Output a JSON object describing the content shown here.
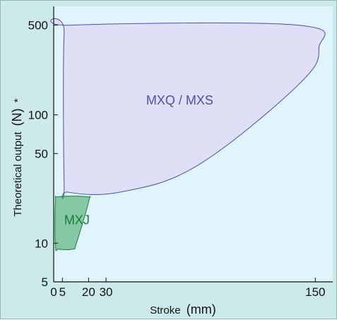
{
  "chart_data": {
    "type": "area",
    "x_scale": "linear",
    "y_scale": "log",
    "xlabel": "Stroke",
    "xlabel_unit": "(mm)",
    "ylabel": "Theoretical output",
    "ylabel_unit": "(N)",
    "ylabel_suffix": "*",
    "xlim": [
      0,
      160
    ],
    "ylim": [
      5,
      700
    ],
    "x_ticks": [
      {
        "value": 0,
        "label": "0"
      },
      {
        "value": 5,
        "label": "5"
      },
      {
        "value": 20,
        "label": "20"
      },
      {
        "value": 30,
        "label": "30"
      },
      {
        "value": 150,
        "label": "150"
      }
    ],
    "y_ticks": [
      {
        "value": 5,
        "label": "5"
      },
      {
        "value": 10,
        "label": "10"
      },
      {
        "value": 50,
        "label": "50"
      },
      {
        "value": 100,
        "label": "100"
      },
      {
        "value": 500,
        "label": "500"
      }
    ],
    "series": [
      {
        "name": "MXQ / MXS",
        "label_at": {
          "x": 53,
          "y": 120
        },
        "fill": "#dfe0f5",
        "stroke": "#4b4fb0",
        "text_color": "#4b4fb0",
        "outline": [
          {
            "x": 6,
            "y": 430
          },
          {
            "x": 10,
            "y": 500
          },
          {
            "x": 140,
            "y": 500
          },
          {
            "x": 152,
            "y": 330
          },
          {
            "x": 140,
            "y": 170
          },
          {
            "x": 82,
            "y": 40
          },
          {
            "x": 38,
            "y": 25
          },
          {
            "x": 8,
            "y": 25
          },
          {
            "x": 6,
            "y": 29
          }
        ]
      },
      {
        "name": "MXJ",
        "label_at": {
          "x": 6,
          "y": 14
        },
        "fill": "#3aa55d",
        "fill_opacity": 0.55,
        "stroke": "#1b7a3a",
        "text_color": "#1b7a3a",
        "outline": [
          {
            "x": 1,
            "y": 9.5
          },
          {
            "x": 1,
            "y": 21
          },
          {
            "x": 3,
            "y": 23
          },
          {
            "x": 19,
            "y": 23
          },
          {
            "x": 20,
            "y": 21
          },
          {
            "x": 13,
            "y": 10
          },
          {
            "x": 11,
            "y": 9
          },
          {
            "x": 3,
            "y": 9
          }
        ]
      }
    ],
    "grid": false,
    "plot_background": "#dff4fb",
    "frame_background": "#cdeaea",
    "axis_color": "#111111"
  }
}
